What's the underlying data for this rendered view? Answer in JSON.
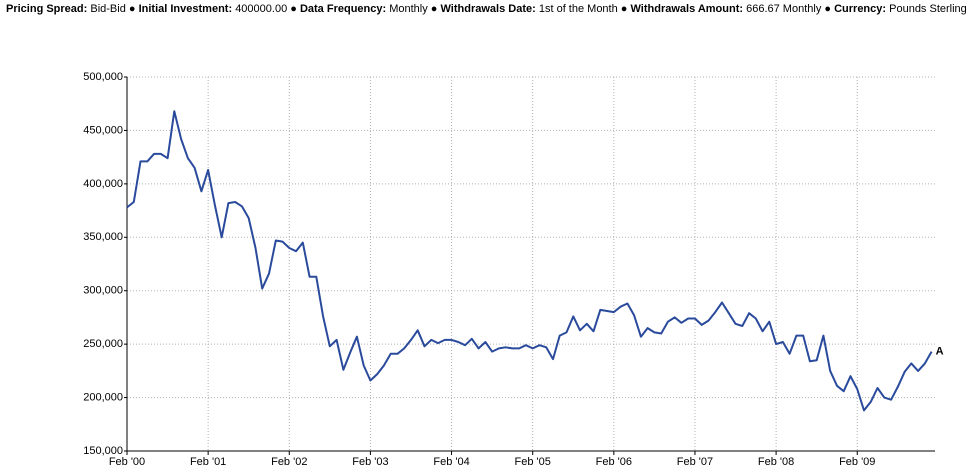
{
  "header": {
    "items": [
      {
        "label": "Pricing Spread:",
        "value": "Bid-Bid"
      },
      {
        "label": "Initial Investment:",
        "value": "400000.00"
      },
      {
        "label": "Data Frequency:",
        "value": "Monthly"
      },
      {
        "label": "Withdrawals Date:",
        "value": "1st of the Month"
      },
      {
        "label": "Withdrawals Amount:",
        "value": "666.67 Monthly"
      },
      {
        "label": "Currency:",
        "value": "Pounds Sterling"
      }
    ]
  },
  "chart_data": {
    "type": "line",
    "categories": [
      "Feb '00",
      null,
      null,
      null,
      null,
      null,
      null,
      null,
      null,
      null,
      null,
      null,
      "Feb '01",
      null,
      null,
      null,
      null,
      null,
      null,
      null,
      null,
      null,
      null,
      null,
      "Feb '02",
      null,
      null,
      null,
      null,
      null,
      null,
      null,
      null,
      null,
      null,
      null,
      "Feb '03",
      null,
      null,
      null,
      null,
      null,
      null,
      null,
      null,
      null,
      null,
      null,
      "Feb '04",
      null,
      null,
      null,
      null,
      null,
      null,
      null,
      null,
      null,
      null,
      null,
      "Feb '05",
      null,
      null,
      null,
      null,
      null,
      null,
      null,
      null,
      null,
      null,
      null,
      "Feb '06",
      null,
      null,
      null,
      null,
      null,
      null,
      null,
      null,
      null,
      null,
      null,
      "Feb '07",
      null,
      null,
      null,
      null,
      null,
      null,
      null,
      null,
      null,
      null,
      null,
      "Feb '08",
      null,
      null,
      null,
      null,
      null,
      null,
      null,
      null,
      null,
      null,
      null,
      "Feb '09",
      null,
      null,
      null,
      null,
      null,
      null,
      null,
      null,
      null,
      null,
      null
    ],
    "series": [
      {
        "name": "A",
        "color": "#2a4a9c",
        "values": [
          378000,
          383000,
          421000,
          421000,
          428000,
          428000,
          424000,
          468000,
          442000,
          424000,
          415000,
          393000,
          413000,
          380000,
          350000,
          382000,
          383000,
          379000,
          368000,
          340000,
          302000,
          316000,
          347000,
          346000,
          340000,
          337000,
          345000,
          313000,
          313000,
          276000,
          248000,
          254000,
          226000,
          242000,
          257000,
          230000,
          216000,
          222000,
          230000,
          241000,
          241000,
          246000,
          254000,
          263000,
          248000,
          254000,
          251000,
          254000,
          254000,
          252000,
          249000,
          255000,
          246000,
          252000,
          243000,
          246000,
          247000,
          246000,
          246000,
          249000,
          246000,
          249000,
          247000,
          236000,
          258000,
          261000,
          276000,
          263000,
          269000,
          262000,
          282000,
          281000,
          280000,
          285000,
          288000,
          277000,
          257000,
          265000,
          261000,
          260000,
          271000,
          275000,
          270000,
          274000,
          274000,
          268000,
          272000,
          280000,
          289000,
          279000,
          269000,
          267000,
          279000,
          274000,
          262000,
          271000,
          250000,
          252000,
          241000,
          258000,
          258000,
          234000,
          235000,
          258000,
          225000,
          211000,
          206000,
          220000,
          208000,
          188000,
          196000,
          209000,
          200000,
          198000,
          210000,
          224000,
          232000,
          225000,
          232000,
          243000
        ]
      }
    ],
    "ylim": [
      150000,
      500000
    ],
    "yticks": [
      {
        "value": 150000,
        "label": "150,000"
      },
      {
        "value": 200000,
        "label": "200,000"
      },
      {
        "value": 250000,
        "label": "250,000"
      },
      {
        "value": 300000,
        "label": "300,000"
      },
      {
        "value": 350000,
        "label": "350,000"
      },
      {
        "value": 400000,
        "label": "400,000"
      },
      {
        "value": 450000,
        "label": "450,000"
      },
      {
        "value": 500000,
        "label": "500,000"
      }
    ],
    "grid": true
  }
}
